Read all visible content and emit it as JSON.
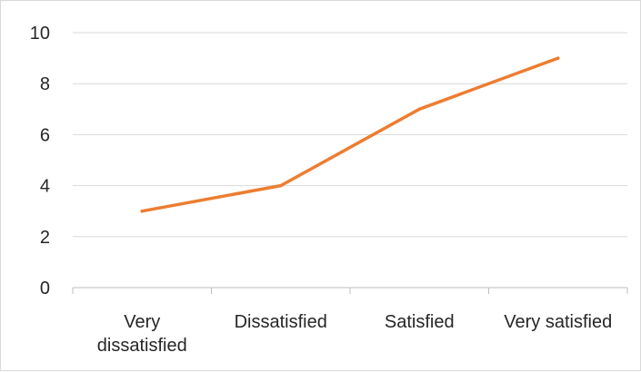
{
  "chart_data": {
    "type": "line",
    "categories": [
      "Very dissatisfied",
      "Dissatisfied",
      "Satisfied",
      "Very satisfied"
    ],
    "category_lines": [
      [
        "Very",
        "dissatisfied"
      ],
      [
        "Dissatisfied"
      ],
      [
        "Satisfied"
      ],
      [
        "Very satisfied"
      ]
    ],
    "series": [
      {
        "values": [
          3,
          4,
          7,
          9
        ],
        "color": "#ed7d31"
      }
    ],
    "yticks": [
      0,
      2,
      4,
      6,
      8,
      10
    ],
    "ylim": [
      0,
      10
    ],
    "grid": true,
    "legend": "none",
    "colors": {
      "grid": "#d9d9d9",
      "axis": "#bfbfbf",
      "text": "#262626"
    }
  }
}
